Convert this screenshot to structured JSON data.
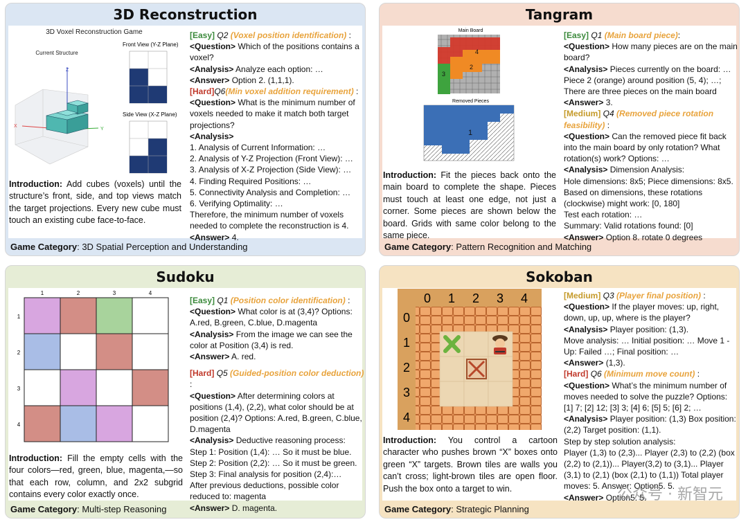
{
  "recon": {
    "title": "3D Reconstruction",
    "fig_title": "3D Voxel Reconstruction Game",
    "current_label": "Current Structure",
    "front_label": "Front View (Y-Z Plane)",
    "side_label": "Side View (X-Z Plane)",
    "intro_label": "Introduction:",
    "intro": "Add cubes (voxels) until the structure’s front, side, and top views match the target projections. Every new cube must touch an existing cube face-to-face.",
    "cat_label": "Game Category",
    "cat": ": 3D Spatial Perception and Understanding",
    "q1_level": "[Easy]",
    "q1_num": "Q2",
    "q1_type": "(Voxel position identification)",
    "q1_question": "Which of the positions contains a voxel?",
    "q1_analysis": "Analyze each option: …",
    "q1_answer": "Option 2. (1,1,1).",
    "q2_level": "[Hard]",
    "q2_num": "Q6",
    "q2_type": "(Min voxel addition requirement)",
    "q2_question": "What is the minimum number of voxels needed to make it match both target projections?",
    "q2_steps": [
      "1. Analysis of Current Information: …",
      "2. Analysis of Y-Z Projection (Front View): …",
      "3. Analysis of X-Z Projection (Side View): …",
      "4. Finding Required Positions: …",
      "5. Connectivity Analysis and Completion: …",
      "6. Verifying Optimality: …",
      "Therefore, the minimum number of voxels needed to complete the reconstruction is 4."
    ],
    "q2_answer": "4."
  },
  "tangram": {
    "title": "Tangram",
    "main_board_label": "Main Board",
    "removed_label": "Removed Pieces",
    "intro_label": "Introduction:",
    "intro": "Fit the pieces back onto the main board to complete the shape. Pieces must touch at least one edge, not just a corner. Some pieces are shown below the board. Grids with same color belong to the same piece.",
    "cat_label": "Game Category",
    "cat": ": Pattern Recognition and Matching",
    "q1_level": "[Easy]",
    "q1_num": "Q1",
    "q1_type": "(Main board piece)",
    "q1_question": "How many pieces are on the main board?",
    "q1_analysis": "Pieces currently on the board: … Piece 2 (orange) around position (5, 4); …; There are three pieces on the main board",
    "q1_answer": "3.",
    "q2_level": "[Medium]",
    "q2_num": "Q4",
    "q2_type": "(Removed piece rotation feasibility)",
    "q2_question": "Can the removed piece fit back into the main board by only rotation? What rotation(s) work? Options: …",
    "q2_analysis": "Dimension Analysis:",
    "q2_lines": [
      "Hole dimensions: 8x5; Piece dimensions: 8x5.",
      "Based on dimensions, these rotations (clockwise) might work: [0, 180]",
      "Test each rotation: …",
      "Summary:  Valid rotations found: [0]"
    ],
    "q2_answer": "Option 8. rotate 0 degrees"
  },
  "sudoku": {
    "title": "Sudoku",
    "cols": [
      "1",
      "2",
      "3",
      "4"
    ],
    "rows": [
      "1",
      "2",
      "3",
      "4"
    ],
    "intro_label": "Introduction:",
    "intro": "Fill the empty cells with the four colors—red, green, blue, magenta,—so that each row, column, and 2x2 subgrid contains every color exactly once.",
    "cat_label": "Game Category",
    "cat": ": Multi-step Reasoning",
    "q1_level": "[Easy]",
    "q1_num": "Q1",
    "q1_type": "(Position color identification)",
    "q1_question": "What color is at (3,4)? Options: A.red, B.green, C.blue, D.magenta",
    "q1_analysis": "From the image we can see the color at Position (3,4) is red.",
    "q1_answer": "A. red.",
    "q2_level": "[Hard]",
    "q2_num": "Q5",
    "q2_type": "(Guided-position color deduction)",
    "q2_question": "After determining colors at positions (1,4), (2,2), what color should be at position (2,4)? Options: A.red, B.green, C.blue, D.magenta",
    "q2_analysis": "Deductive reasoning process:",
    "q2_lines": [
      "Step 1: Position (1,4): …  So it must be blue.",
      "Step 2: Position (2,2): … So it must be green.",
      "Step 3: Final analysis for position (2,4):…",
      "After previous deductions, possible color reduced to: magenta"
    ],
    "q2_answer": "D. magenta."
  },
  "sokoban": {
    "title": "Sokoban",
    "cols": [
      "0",
      "1",
      "2",
      "3",
      "4"
    ],
    "rows": [
      "0",
      "1",
      "2",
      "3",
      "4"
    ],
    "intro_label": "Introduction:",
    "intro": "You control a cartoon character who pushes brown “X” boxes onto green “X” targets. Brown tiles are walls you can’t cross; light-brown tiles are open floor. Push the box onto a target to win.",
    "cat_label": "Game Category",
    "cat": ": Strategic Planning",
    "q1_level": "[Medium]",
    "q1_num": "Q3",
    "q1_type": "(Player final position)",
    "q1_question": "If the player moves: up, right, down, up, up, where is the player?",
    "q1_analysis": "Player position: (1,3).",
    "q1_lines": [
      "Move analysis: … Initial position: … Move 1 - Up: Failed …; Final position: …"
    ],
    "q1_answer": "(1,3).",
    "q2_level": "[Hard]",
    "q2_num": "Q6",
    "q2_type": "(Minimum move count)",
    "q2_question": "What’s the minimum number of moves needed to solve the puzzle? Options: [1] 7; [2] 12; [3] 3; [4] 6; [5] 5; [6] 2; …",
    "q2_analysis": "Player position: (1,3) Box position: (2,2) Target position: (1,1).",
    "q2_lines": [
      "Step by step solution analysis:",
      "Player (1,3) to (2,3)... Player (2,3) to (2,2) (box (2,2) to (2,1))... Player(3,2) to (3,1)... Player (3,1) to (2,1) (box (2,1) to (1,1)) Total player moves: 5. Answer: Option5. 5."
    ],
    "q2_answer": "Option5. 5.",
    "watermark": "公众号 · 新智元"
  },
  "labels": {
    "question": "<Question>",
    "analysis": "<Analysis>",
    "answer": "<Answer>"
  }
}
